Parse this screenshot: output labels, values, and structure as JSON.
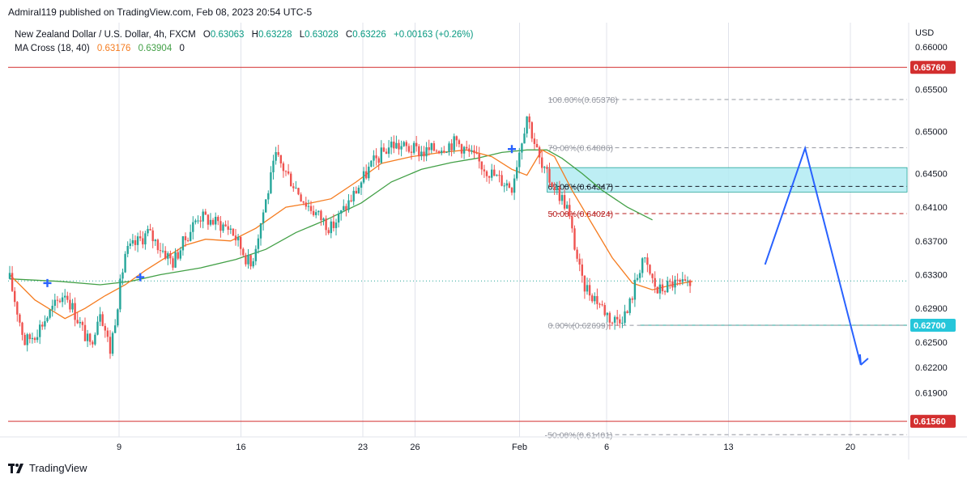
{
  "header": {
    "published": "Admiral119 published on TradingView.com, Feb 08, 2023 20:54 UTC-5"
  },
  "legend": {
    "symbol": "New Zealand Dollar / U.S. Dollar, 4h, FXCM",
    "o_label": "O",
    "o_value": "0.63063",
    "h_label": "H",
    "h_value": "0.63228",
    "l_label": "L",
    "l_value": "0.63028",
    "c_label": "C",
    "c_value": "0.63226",
    "change": "+0.00163 (+0.26%)",
    "indicator": "MA Cross (18, 40)",
    "ma_fast": "0.63176",
    "ma_slow": "0.63904",
    "ma_extra": "0"
  },
  "footer": {
    "brand": "TradingView"
  },
  "colors": {
    "up": "#26a69a",
    "down": "#ef5350",
    "ma_fast": "#f57c20",
    "ma_slow": "#43a047",
    "hline": "#d32f2f",
    "zone": "#b2ebf2",
    "arrow": "#2962ff",
    "badge_cyan": "#26c6da"
  },
  "chart_data": {
    "type": "candlestick",
    "currency": "USD",
    "ylim": [
      0.6126,
      0.6629
    ],
    "y_ticks": [
      "0.66000",
      "0.65500",
      "0.65000",
      "0.64500",
      "0.64100",
      "0.63700",
      "0.63300",
      "0.62900",
      "0.62500",
      "0.62200",
      "0.61900"
    ],
    "x_ticks": [
      {
        "label": "9",
        "day": 9
      },
      {
        "label": "16",
        "day": 16
      },
      {
        "label": "23",
        "day": 23
      },
      {
        "label": "26",
        "day": 26
      },
      {
        "label": "Feb",
        "day": 32
      },
      {
        "label": "6",
        "day": 37
      },
      {
        "label": "13",
        "day": 44
      },
      {
        "label": "20",
        "day": 51
      }
    ],
    "candle_anchors": [
      [
        0,
        0.6325
      ],
      [
        6,
        0.625
      ],
      [
        10,
        0.626
      ],
      [
        22,
        0.631
      ],
      [
        32,
        0.6245
      ],
      [
        36,
        0.629
      ],
      [
        40,
        0.624
      ],
      [
        46,
        0.6355
      ],
      [
        55,
        0.638
      ],
      [
        65,
        0.6345
      ],
      [
        75,
        0.64
      ],
      [
        88,
        0.6385
      ],
      [
        96,
        0.634
      ],
      [
        106,
        0.647
      ],
      [
        118,
        0.6415
      ],
      [
        128,
        0.6385
      ],
      [
        136,
        0.642
      ],
      [
        144,
        0.646
      ],
      [
        152,
        0.6485
      ],
      [
        165,
        0.6475
      ],
      [
        178,
        0.6488
      ],
      [
        188,
        0.646
      ],
      [
        194,
        0.6445
      ],
      [
        200,
        0.6435
      ],
      [
        206,
        0.652
      ],
      [
        212,
        0.6455
      ],
      [
        217,
        0.6435
      ],
      [
        222,
        0.641
      ],
      [
        228,
        0.632
      ],
      [
        234,
        0.63
      ],
      [
        240,
        0.6275
      ],
      [
        246,
        0.6285
      ],
      [
        252,
        0.635
      ],
      [
        258,
        0.631
      ],
      [
        264,
        0.632
      ],
      [
        270,
        0.6315
      ]
    ],
    "ma_fast_points": [
      [
        0,
        0.633
      ],
      [
        10,
        0.63
      ],
      [
        22,
        0.6278
      ],
      [
        30,
        0.629
      ],
      [
        38,
        0.6305
      ],
      [
        46,
        0.6318
      ],
      [
        54,
        0.6335
      ],
      [
        62,
        0.635
      ],
      [
        70,
        0.6365
      ],
      [
        78,
        0.6372
      ],
      [
        88,
        0.637
      ],
      [
        98,
        0.6385
      ],
      [
        110,
        0.641
      ],
      [
        120,
        0.6415
      ],
      [
        128,
        0.642
      ],
      [
        138,
        0.644
      ],
      [
        148,
        0.6462
      ],
      [
        160,
        0.647
      ],
      [
        172,
        0.6475
      ],
      [
        182,
        0.6478
      ],
      [
        192,
        0.647
      ],
      [
        200,
        0.6455
      ],
      [
        206,
        0.6448
      ],
      [
        212,
        0.6478
      ],
      [
        217,
        0.647
      ],
      [
        224,
        0.643
      ],
      [
        232,
        0.639
      ],
      [
        240,
        0.635
      ],
      [
        248,
        0.632
      ],
      [
        256,
        0.6312
      ],
      [
        264,
        0.6318
      ],
      [
        272,
        0.6322
      ]
    ],
    "ma_slow_points": [
      [
        0,
        0.6325
      ],
      [
        20,
        0.6322
      ],
      [
        36,
        0.6318
      ],
      [
        48,
        0.6322
      ],
      [
        60,
        0.633
      ],
      [
        76,
        0.6338
      ],
      [
        90,
        0.6348
      ],
      [
        102,
        0.636
      ],
      [
        114,
        0.638
      ],
      [
        126,
        0.6395
      ],
      [
        140,
        0.6415
      ],
      [
        152,
        0.644
      ],
      [
        164,
        0.6455
      ],
      [
        176,
        0.6463
      ],
      [
        186,
        0.6468
      ],
      [
        196,
        0.6475
      ],
      [
        206,
        0.6478
      ],
      [
        214,
        0.6478
      ],
      [
        220,
        0.6468
      ],
      [
        228,
        0.645
      ],
      [
        236,
        0.643
      ],
      [
        246,
        0.641
      ],
      [
        256,
        0.6395
      ]
    ],
    "cross_markers": [
      [
        15,
        0.632
      ],
      [
        52,
        0.6327
      ],
      [
        200,
        0.6479
      ]
    ],
    "horizontal_lines": [
      {
        "value": 0.6576,
        "label": "0.65760"
      },
      {
        "value": 0.6156,
        "label": "0.61560"
      }
    ],
    "current_price_line": {
      "value": 0.63226
    },
    "support_line": {
      "value": 0.627,
      "label": "0.62700",
      "from_index": 251
    },
    "fib_levels": [
      {
        "value": 0.65378,
        "label": "100.00%(0.65378)",
        "style": "gray"
      },
      {
        "value": 0.64806,
        "label": "79.00%(0.64806)",
        "style": "gray"
      },
      {
        "value": 0.64347,
        "label": "62.00%(0.64347)",
        "style": "dark"
      },
      {
        "value": 0.64024,
        "label": "50.00%(0.64024)",
        "style": "red"
      },
      {
        "value": 0.62699,
        "label": "0.00%(0.62699)",
        "style": "gray"
      },
      {
        "value": 0.61401,
        "label": "-50.00%(0.61401)",
        "style": "gray"
      }
    ],
    "zone": {
      "top": 0.6457,
      "bottom": 0.6428
    },
    "projection_path": [
      [
        46.1,
        0.6342
      ],
      [
        48.4,
        0.648
      ],
      [
        51.6,
        0.6223
      ]
    ]
  }
}
